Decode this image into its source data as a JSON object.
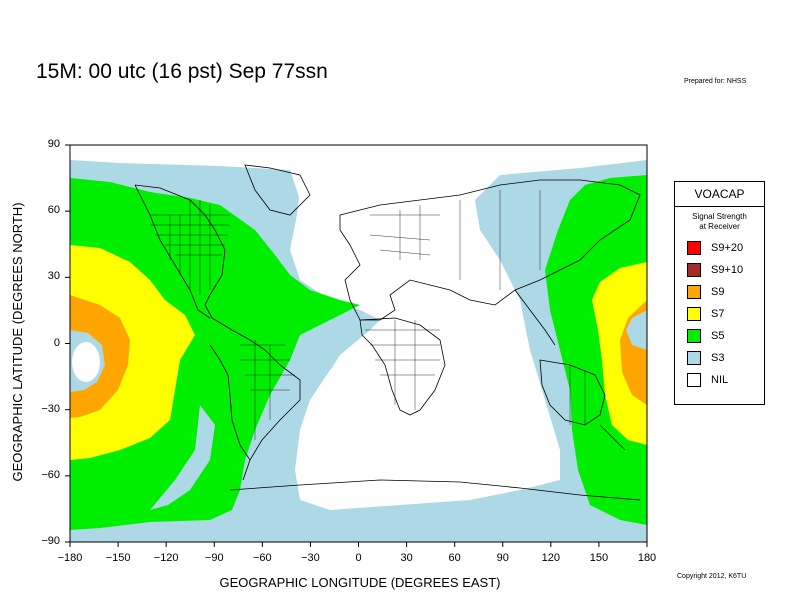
{
  "title": "15M:  00 utc (16 pst) Sep 77ssn",
  "prepared": "Prepared for: NHSS",
  "copyright": "Copyright 2012, K6TU",
  "axes": {
    "xlabel": "GEOGRAPHIC LONGITUDE (DEGREES EAST)",
    "ylabel": "GEOGRAPHIC LATITUDE (DEGREES NORTH)",
    "xticks": [
      "−180",
      "−150",
      "−120",
      "−90",
      "−60",
      "−30",
      "0",
      "30",
      "60",
      "90",
      "120",
      "150",
      "180"
    ],
    "yticks": [
      "90",
      "60",
      "30",
      "0",
      "−30",
      "−60",
      "−90"
    ],
    "xrange": [
      -180,
      180
    ],
    "yrange": [
      -90,
      90
    ]
  },
  "legend": {
    "title": "VOACAP",
    "subtitle_line1": "Signal Strength",
    "subtitle_line2": "at Receiver",
    "items": [
      {
        "label": "S9+20",
        "color": "#ff0000"
      },
      {
        "label": "S9+10",
        "color": "#a52a2a"
      },
      {
        "label": "S9",
        "color": "#ffa500"
      },
      {
        "label": "S7",
        "color": "#ffff00"
      },
      {
        "label": "S5",
        "color": "#00ee00"
      },
      {
        "label": "S3",
        "color": "#add8e6"
      },
      {
        "label": "NIL",
        "color": "#ffffff"
      }
    ]
  }
}
